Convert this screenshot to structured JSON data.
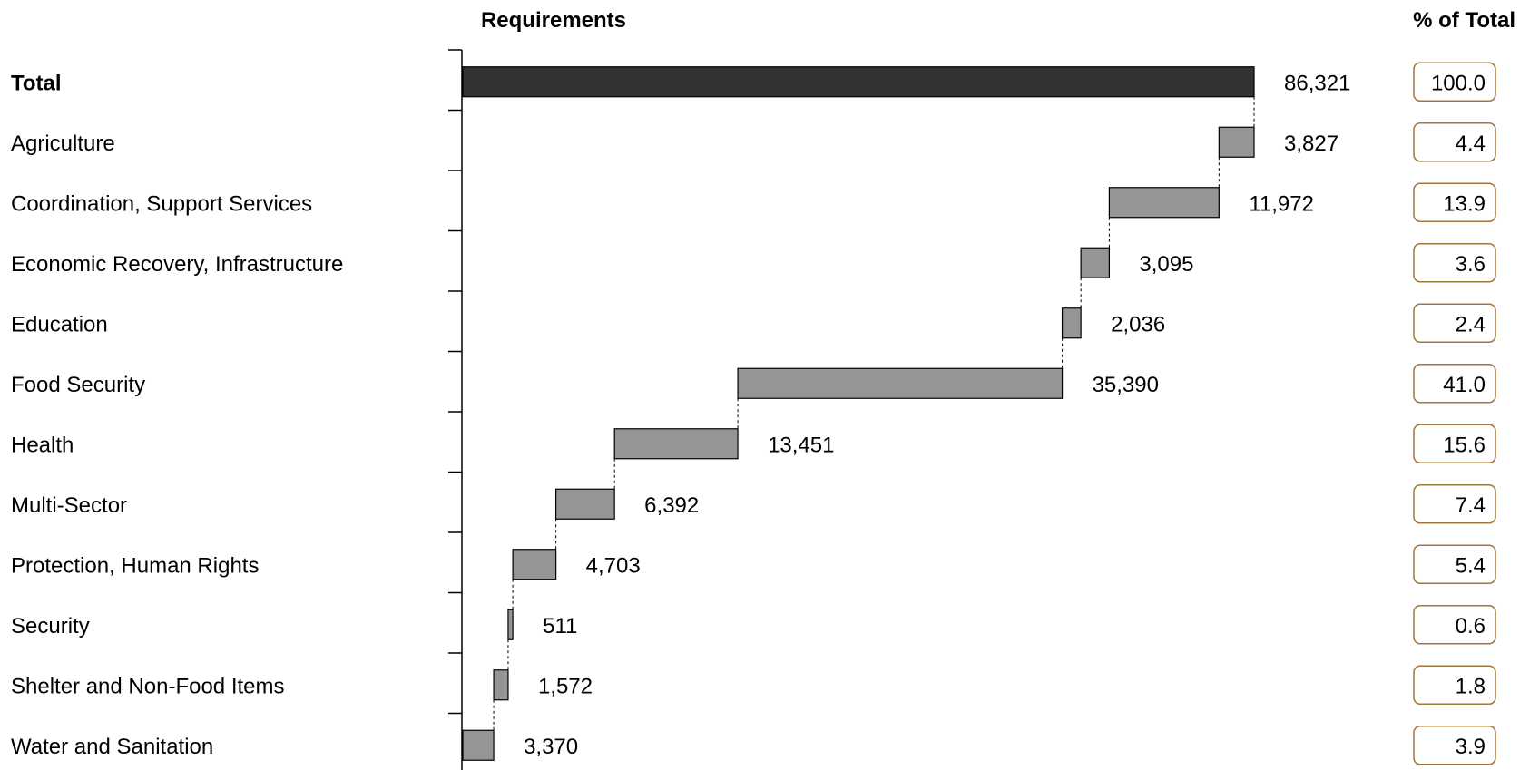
{
  "chart_data": {
    "type": "bar",
    "subtype": "waterfall",
    "column_header": "Requirements",
    "pct_header": "% of Total",
    "categories": [
      "Total",
      "Agriculture",
      "Coordination, Support Services",
      "Economic Recovery, Infrastructure",
      "Education",
      "Food Security",
      "Health",
      "Multi-Sector",
      "Protection, Human Rights",
      "Security",
      "Shelter and Non-Food Items",
      "Water and Sanitation"
    ],
    "values": [
      86321,
      3827,
      11972,
      3095,
      2036,
      35390,
      13451,
      6392,
      4703,
      511,
      1572,
      3370
    ],
    "value_labels": [
      "86,321",
      "3,827",
      "11,972",
      "3,095",
      "2,036",
      "35,390",
      "13,451",
      "6,392",
      "4,703",
      "511",
      "1,572",
      "3,370"
    ],
    "percent_of_total": [
      "100.0",
      "4.4",
      "13.9",
      "3.6",
      "2.4",
      "41.0",
      "15.6",
      "7.4",
      "5.4",
      "0.6",
      "1.8",
      "3.9"
    ],
    "xlim": [
      0,
      86321
    ],
    "grid": false,
    "legend": "none",
    "colors": {
      "total_bar": "#333333",
      "segment_bar": "#959595",
      "bar_outline": "#000000",
      "pct_box_border": "#a0773c"
    }
  }
}
